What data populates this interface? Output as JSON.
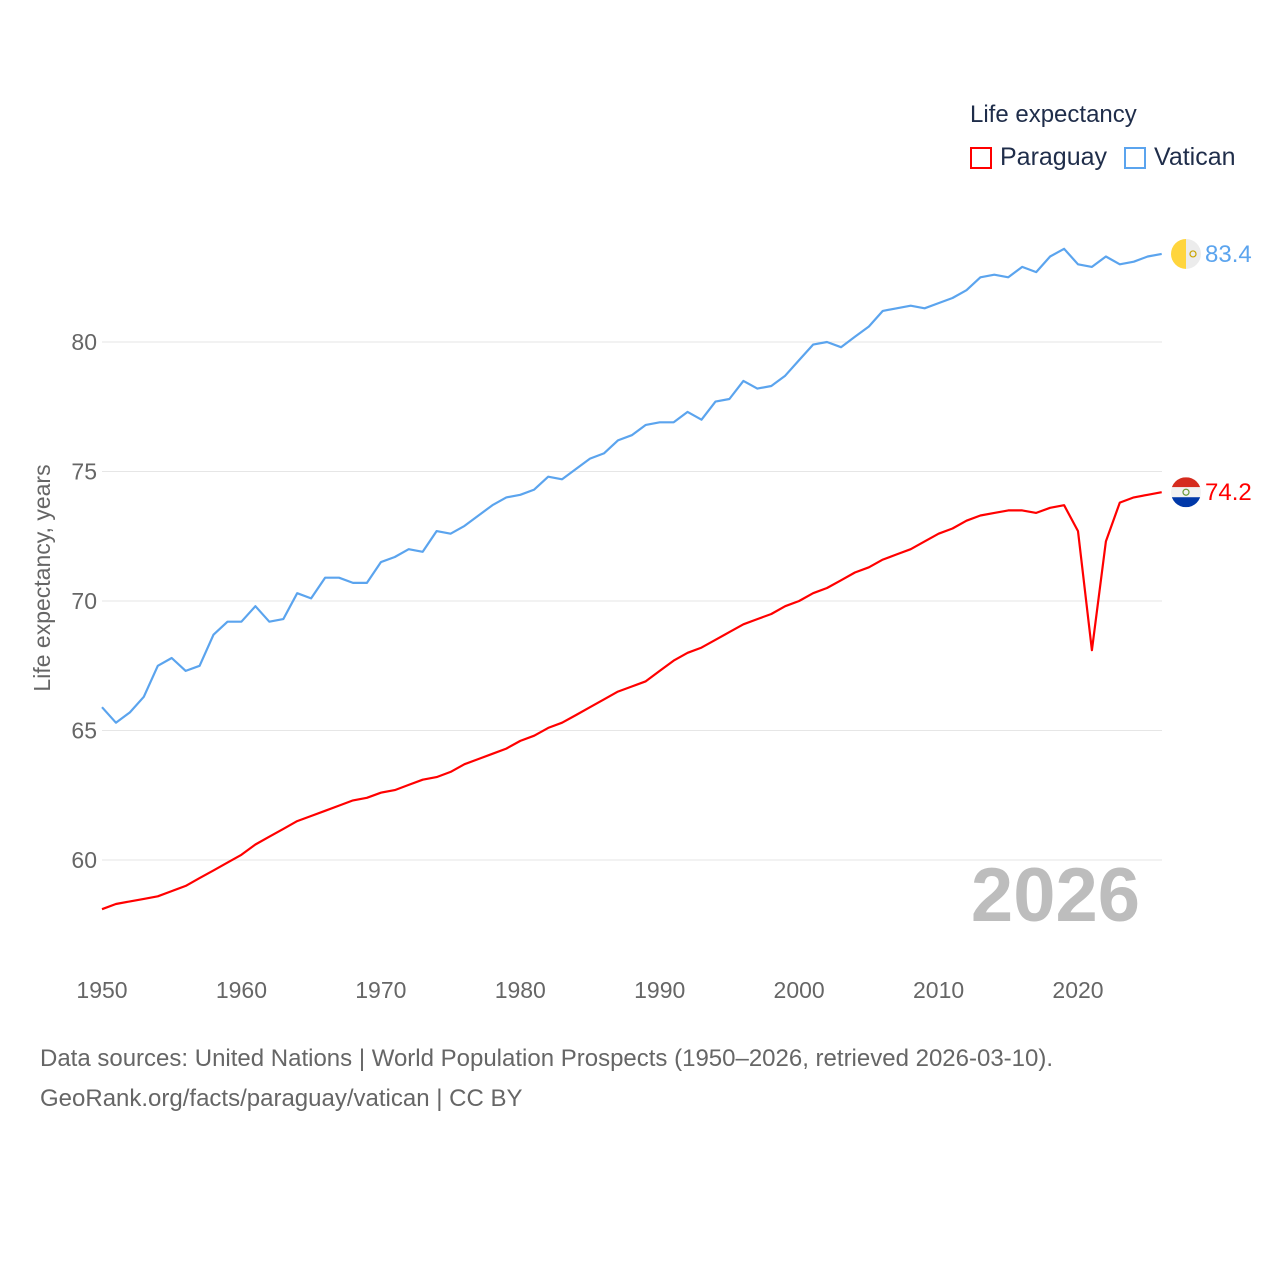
{
  "chart_data": {
    "type": "line",
    "title": "",
    "xlabel": "",
    "ylabel": "Life expectancy, years",
    "xlim": [
      1950,
      2026
    ],
    "ylim": [
      57.2,
      85
    ],
    "yticks": [
      60,
      65,
      70,
      75,
      80
    ],
    "xticks": [
      1950,
      1960,
      1970,
      1980,
      1990,
      2000,
      2010,
      2020
    ],
    "grid": true,
    "legend_title": "Life expectancy",
    "legend_position": "top-right",
    "year_label": "2026",
    "x_start": 1950,
    "series": [
      {
        "name": "Paraguay",
        "color": "#ff0000",
        "end_label": "74.2",
        "flag": "paraguay-flag",
        "values": [
          58.1,
          58.3,
          58.4,
          58.5,
          58.6,
          58.8,
          59.0,
          59.3,
          59.6,
          59.9,
          60.2,
          60.6,
          60.9,
          61.2,
          61.5,
          61.7,
          61.9,
          62.1,
          62.3,
          62.4,
          62.6,
          62.7,
          62.9,
          63.1,
          63.2,
          63.4,
          63.7,
          63.9,
          64.1,
          64.3,
          64.6,
          64.8,
          65.1,
          65.3,
          65.6,
          65.9,
          66.2,
          66.5,
          66.7,
          66.9,
          67.3,
          67.7,
          68.0,
          68.2,
          68.5,
          68.8,
          69.1,
          69.3,
          69.5,
          69.8,
          70.0,
          70.3,
          70.5,
          70.8,
          71.1,
          71.3,
          71.6,
          71.8,
          72.0,
          72.3,
          72.6,
          72.8,
          73.1,
          73.3,
          73.4,
          73.5,
          73.5,
          73.4,
          73.6,
          73.7,
          72.7,
          68.1,
          72.3,
          73.8,
          74.0,
          74.1,
          74.2
        ]
      },
      {
        "name": "Vatican",
        "color": "#5ba4ee",
        "end_label": "83.4",
        "flag": "vatican-flag",
        "values": [
          65.9,
          65.3,
          65.7,
          66.3,
          67.5,
          67.8,
          67.3,
          67.5,
          68.7,
          69.2,
          69.2,
          69.8,
          69.2,
          69.3,
          70.3,
          70.1,
          70.9,
          70.9,
          70.7,
          70.7,
          71.5,
          71.7,
          72.0,
          71.9,
          72.7,
          72.6,
          72.9,
          73.3,
          73.7,
          74.0,
          74.1,
          74.3,
          74.8,
          74.7,
          75.1,
          75.5,
          75.7,
          76.2,
          76.4,
          76.8,
          76.9,
          76.9,
          77.3,
          77.0,
          77.7,
          77.8,
          78.5,
          78.2,
          78.3,
          78.7,
          79.3,
          79.9,
          80.0,
          79.8,
          80.2,
          80.6,
          81.2,
          81.3,
          81.4,
          81.3,
          81.5,
          81.7,
          82.0,
          82.5,
          82.6,
          82.5,
          82.9,
          82.7,
          83.3,
          83.6,
          83.0,
          82.9,
          83.3,
          83.0,
          83.1,
          83.3,
          83.4
        ]
      }
    ]
  },
  "footer": {
    "line1": "Data sources: United Nations | World Population Prospects (1950–2026, retrieved 2026-03-10).",
    "line2": "GeoRank.org/facts/paraguay/vatican | CC BY"
  }
}
